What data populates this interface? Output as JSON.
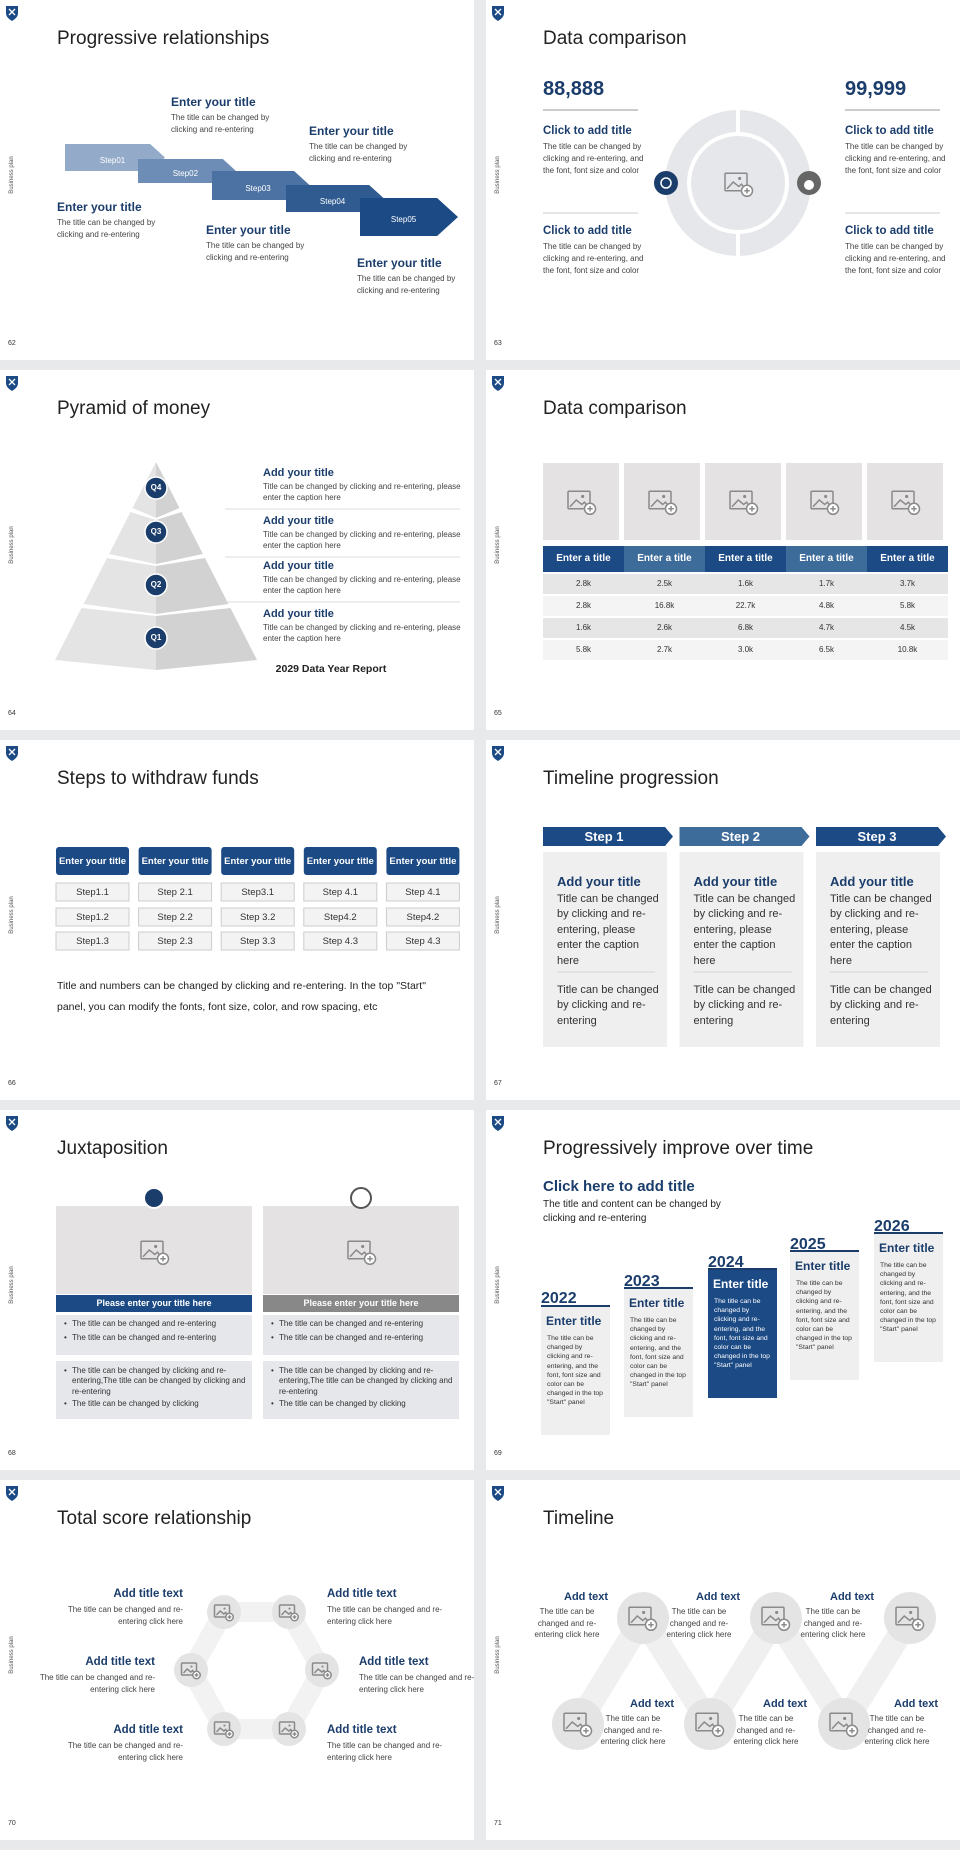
{
  "side_label": "Business plan",
  "slides": [
    {
      "page": "62",
      "title": "Progressive relationships",
      "steps": [
        "Step01",
        "Step02",
        "Step03",
        "Step04",
        "Step05"
      ],
      "items": [
        {
          "title": "Enter your title",
          "text": "The title can be changed by clicking and re-entering"
        },
        {
          "title": "Enter your title",
          "text": "The title can be changed by clicking and re-entering"
        },
        {
          "title": "Enter your title",
          "text": "The title can be changed by clicking and re-entering"
        },
        {
          "title": "Enter your title",
          "text": "The title can be changed by clicking and re-entering"
        },
        {
          "title": "Enter your title",
          "text": "The title can be changed by clicking and re-entering"
        }
      ]
    },
    {
      "page": "63",
      "title": "Data comparison",
      "numbers": [
        "88,888",
        "99,999"
      ],
      "items": [
        {
          "title": "Click to add title",
          "text": "The title can be changed by clicking and re-entering, and the font, font size and color"
        },
        {
          "title": "Click to add title",
          "text": "The title can be changed by clicking and re-entering, and the font, font size and color"
        },
        {
          "title": "Click to add title",
          "text": "The title can be changed by clicking and re-entering, and the font, font size and color"
        },
        {
          "title": "Click to add title",
          "text": "The title can be changed by clicking and re-entering, and the font, font size and color"
        }
      ]
    },
    {
      "page": "64",
      "title": "Pyramid of money",
      "levels": [
        "Q4",
        "Q3",
        "Q2",
        "Q1"
      ],
      "items": [
        {
          "title": "Add your title",
          "text": "Title can be changed by clicking and re-entering, please enter the caption here"
        },
        {
          "title": "Add your title",
          "text": "Title can be changed by clicking and re-entering, please enter the caption here"
        },
        {
          "title": "Add your title",
          "text": "Title can be changed by clicking and re-entering, please enter the caption here"
        },
        {
          "title": "Add your title",
          "text": "Title can be changed by clicking and re-entering, please enter the caption here"
        }
      ],
      "footer": "2029 Data Year Report"
    },
    {
      "page": "65",
      "title": "Data comparison",
      "table": {
        "header": [
          "Enter a title",
          "Enter a title",
          "Enter a title",
          "Enter a title",
          "Enter a title"
        ],
        "rows": [
          [
            "2.8k",
            "2.5k",
            "1.6k",
            "1.7k",
            "3.7k"
          ],
          [
            "2.8k",
            "16.8k",
            "22.7k",
            "4.8k",
            "5.8k"
          ],
          [
            "1.6k",
            "2.6k",
            "6.8k",
            "4.7k",
            "4.5k"
          ],
          [
            "5.8k",
            "2.7k",
            "3.0k",
            "6.5k",
            "10.8k"
          ]
        ]
      }
    },
    {
      "page": "66",
      "title": "Steps to withdraw funds",
      "columns": [
        {
          "head": "Enter your title",
          "steps": [
            "Step1.1",
            "Step1.2",
            "Step1.3"
          ]
        },
        {
          "head": "Enter your title",
          "steps": [
            "Step 2.1",
            "Step 2.2",
            "Step 2.3"
          ]
        },
        {
          "head": "Enter your title",
          "steps": [
            "Step3.1",
            "Step 3.2",
            "Step 3.3"
          ]
        },
        {
          "head": "Enter your title",
          "steps": [
            "Step 4.1",
            "Step4.2",
            "Step 4.3"
          ]
        },
        {
          "head": "Enter your title",
          "steps": [
            "Step 4.1",
            "Step4.2",
            "Step 4.3"
          ]
        }
      ],
      "note": "Title and numbers can be changed by clicking and re-entering. In the top \"Start\" panel, you can modify the fonts, font size, color, and row spacing, etc"
    },
    {
      "page": "67",
      "title": "Timeline progression",
      "steps": [
        {
          "label": "Step 1",
          "title": "Add your title",
          "text": "Title can be changed by clicking and re-entering, please enter the caption here",
          "text2": "Title can be changed by clicking and re-entering"
        },
        {
          "label": "Step 2",
          "title": "Add your title",
          "text": "Title can be changed by clicking and re-entering, please enter the caption here",
          "text2": "Title can be changed by clicking and re-entering"
        },
        {
          "label": "Step 3",
          "title": "Add your title",
          "text": "Title can be changed by clicking and re-entering, please enter the caption here",
          "text2": "Title can be changed by clicking and re-entering"
        }
      ]
    },
    {
      "page": "68",
      "title": "Juxtaposition",
      "panels": [
        {
          "header": "Please enter your title here",
          "bullets1": [
            "The title can be changed and re-entering",
            "The title can be changed and re-entering"
          ],
          "bullets2": [
            "The title can be changed by clicking and re-entering,The title can be changed by clicking and re-entering",
            "The title can be changed by clicking"
          ]
        },
        {
          "header": "Please enter your title here",
          "bullets1": [
            "The title can be changed and re-entering",
            "The title can be changed and re-entering"
          ],
          "bullets2": [
            "The title can be changed by clicking and re-entering,The title can be changed by clicking and re-entering",
            "The title can be changed by clicking"
          ]
        }
      ]
    },
    {
      "page": "69",
      "title": "Progressively improve over time",
      "subtitle": "Click here to add title",
      "subtext": "The title and content can be changed by clicking and re-entering",
      "years": [
        {
          "year": "2022",
          "title": "Enter title",
          "text": "The title can be changed by clicking and re-entering, and the font, font size and color can be changed in the top \"Start\" panel"
        },
        {
          "year": "2023",
          "title": "Enter title",
          "text": "The title can be changed by clicking and re-entering, and the font, font size and color can be changed in the top \"Start\" panel"
        },
        {
          "year": "2024",
          "title": "Enter title",
          "text": "The title can be changed by clicking and re-entering, and the font, font size and color can be changed in the top \"Start\" panel"
        },
        {
          "year": "2025",
          "title": "Enter title",
          "text": "The title can be changed by clicking and re-entering, and the font, font size and color can be changed in the top \"Start\" panel"
        },
        {
          "year": "2026",
          "title": "Enter title",
          "text": "The title can be changed by clicking and re-entering, and the font, font size and color can be changed in the top \"Start\" panel"
        }
      ]
    },
    {
      "page": "70",
      "title": "Total score relationship",
      "items": [
        {
          "title": "Add title text",
          "text": "The title can be changed and re-entering click here"
        },
        {
          "title": "Add title text",
          "text": "The title can be changed and re-entering click here"
        },
        {
          "title": "Add title text",
          "text": "The title can be changed and re-entering click here"
        },
        {
          "title": "Add title text",
          "text": "The title can be changed and re-entering click here"
        },
        {
          "title": "Add title text",
          "text": "The title can be changed and re-entering click here"
        },
        {
          "title": "Add title text",
          "text": "The title can be changed and re-entering click here"
        }
      ]
    },
    {
      "page": "71",
      "title": "Timeline",
      "items": [
        {
          "title": "Add text",
          "text": "The title can be changed and re-entering click here"
        },
        {
          "title": "Add text",
          "text": "The title can be changed and re-entering click here"
        },
        {
          "title": "Add text",
          "text": "The title can be changed and re-entering click here"
        },
        {
          "title": "Add text",
          "text": "The title can be changed and re-entering click here"
        },
        {
          "title": "Add text",
          "text": "The title can be changed and re-entering click here"
        },
        {
          "title": "Add text",
          "text": "The title can be changed and re-entering click here"
        }
      ]
    }
  ]
}
